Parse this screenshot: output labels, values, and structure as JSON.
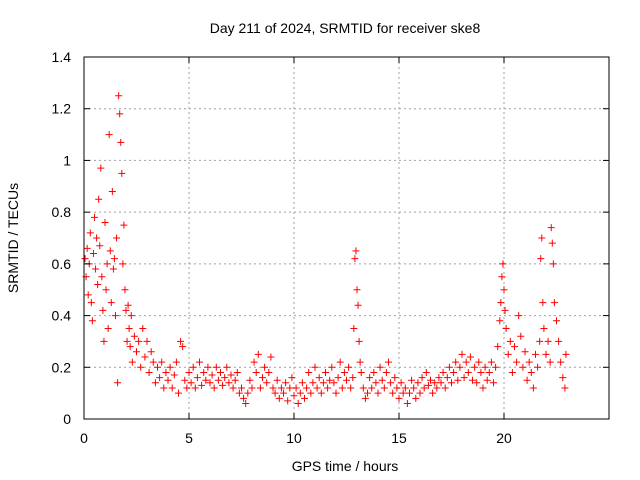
{
  "chart_data": {
    "type": "scatter",
    "title": "Day 211 of 2024, SRMTID for receiver ske8",
    "xlabel": "GPS time / hours",
    "ylabel": "SRMTID / TECUs",
    "xlim": [
      0,
      25
    ],
    "ylim": [
      0,
      1.4
    ],
    "xticks": [
      0,
      5,
      10,
      15,
      20
    ],
    "yticks": [
      0,
      0.2,
      0.4,
      0.6,
      0.8,
      1,
      1.2,
      1.4
    ],
    "grid": true,
    "marker": "+",
    "color": "#ff0000",
    "series": [
      {
        "name": "SRMTID",
        "points": [
          [
            0.05,
            0.62
          ],
          [
            0.1,
            0.55
          ],
          [
            0.15,
            0.66
          ],
          [
            0.2,
            0.48
          ],
          [
            0.25,
            0.6
          ],
          [
            0.3,
            0.72
          ],
          [
            0.35,
            0.45
          ],
          [
            0.4,
            0.38
          ],
          [
            0.45,
            0.64
          ],
          [
            0.5,
            0.78
          ],
          [
            0.55,
            0.58
          ],
          [
            0.6,
            0.7
          ],
          [
            0.65,
            0.52
          ],
          [
            0.7,
            0.85
          ],
          [
            0.75,
            0.67
          ],
          [
            0.8,
            0.97
          ],
          [
            0.85,
            0.55
          ],
          [
            0.9,
            0.42
          ],
          [
            0.95,
            0.3
          ],
          [
            1.0,
            0.76
          ],
          [
            1.05,
            0.5
          ],
          [
            1.1,
            0.6
          ],
          [
            1.15,
            0.35
          ],
          [
            1.2,
            1.1
          ],
          [
            1.25,
            0.65
          ],
          [
            1.3,
            0.45
          ],
          [
            1.35,
            0.88
          ],
          [
            1.4,
            0.58
          ],
          [
            1.45,
            0.62
          ],
          [
            1.5,
            0.4
          ],
          [
            1.55,
            0.7
          ],
          [
            1.6,
            0.14
          ],
          [
            1.65,
            1.25
          ],
          [
            1.7,
            1.18
          ],
          [
            1.75,
            1.07
          ],
          [
            1.8,
            0.95
          ],
          [
            1.85,
            0.6
          ],
          [
            1.9,
            0.75
          ],
          [
            1.95,
            0.5
          ],
          [
            2.0,
            0.42
          ],
          [
            2.05,
            0.3
          ],
          [
            2.1,
            0.44
          ],
          [
            2.15,
            0.35
          ],
          [
            2.2,
            0.28
          ],
          [
            2.25,
            0.4
          ],
          [
            2.3,
            0.22
          ],
          [
            2.4,
            0.32
          ],
          [
            2.5,
            0.26
          ],
          [
            2.6,
            0.3
          ],
          [
            2.7,
            0.2
          ],
          [
            2.8,
            0.35
          ],
          [
            2.9,
            0.24
          ],
          [
            3.0,
            0.3
          ],
          [
            3.1,
            0.18
          ],
          [
            3.2,
            0.26
          ],
          [
            3.3,
            0.22
          ],
          [
            3.4,
            0.14
          ],
          [
            3.5,
            0.2
          ],
          [
            3.6,
            0.16
          ],
          [
            3.7,
            0.22
          ],
          [
            3.8,
            0.12
          ],
          [
            3.9,
            0.18
          ],
          [
            4.0,
            0.15
          ],
          [
            4.1,
            0.2
          ],
          [
            4.2,
            0.12
          ],
          [
            4.3,
            0.17
          ],
          [
            4.4,
            0.22
          ],
          [
            4.5,
            0.1
          ],
          [
            4.6,
            0.3
          ],
          [
            4.7,
            0.28
          ],
          [
            4.8,
            0.15
          ],
          [
            4.9,
            0.12
          ],
          [
            5.0,
            0.18
          ],
          [
            5.1,
            0.14
          ],
          [
            5.2,
            0.2
          ],
          [
            5.3,
            0.12
          ],
          [
            5.4,
            0.16
          ],
          [
            5.5,
            0.22
          ],
          [
            5.6,
            0.13
          ],
          [
            5.7,
            0.18
          ],
          [
            5.8,
            0.15
          ],
          [
            5.9,
            0.2
          ],
          [
            6.0,
            0.14
          ],
          [
            6.1,
            0.17
          ],
          [
            6.2,
            0.12
          ],
          [
            6.3,
            0.2
          ],
          [
            6.4,
            0.15
          ],
          [
            6.5,
            0.18
          ],
          [
            6.6,
            0.13
          ],
          [
            6.7,
            0.16
          ],
          [
            6.8,
            0.2
          ],
          [
            6.9,
            0.14
          ],
          [
            7.0,
            0.17
          ],
          [
            7.1,
            0.12
          ],
          [
            7.2,
            0.15
          ],
          [
            7.3,
            0.18
          ],
          [
            7.4,
            0.1
          ],
          [
            7.5,
            0.12
          ],
          [
            7.6,
            0.08
          ],
          [
            7.7,
            0.06
          ],
          [
            7.8,
            0.1
          ],
          [
            7.9,
            0.15
          ],
          [
            8.0,
            0.12
          ],
          [
            8.1,
            0.22
          ],
          [
            8.2,
            0.18
          ],
          [
            8.3,
            0.25
          ],
          [
            8.4,
            0.12
          ],
          [
            8.5,
            0.16
          ],
          [
            8.6,
            0.2
          ],
          [
            8.7,
            0.14
          ],
          [
            8.8,
            0.18
          ],
          [
            8.9,
            0.24
          ],
          [
            9.0,
            0.12
          ],
          [
            9.1,
            0.1
          ],
          [
            9.2,
            0.15
          ],
          [
            9.3,
            0.08
          ],
          [
            9.4,
            0.12
          ],
          [
            9.5,
            0.1
          ],
          [
            9.6,
            0.14
          ],
          [
            9.7,
            0.07
          ],
          [
            9.8,
            0.12
          ],
          [
            9.9,
            0.16
          ],
          [
            10.0,
            0.09
          ],
          [
            10.1,
            0.12
          ],
          [
            10.2,
            0.06
          ],
          [
            10.3,
            0.1
          ],
          [
            10.4,
            0.14
          ],
          [
            10.5,
            0.08
          ],
          [
            10.6,
            0.12
          ],
          [
            10.7,
            0.18
          ],
          [
            10.8,
            0.1
          ],
          [
            10.9,
            0.14
          ],
          [
            11.0,
            0.2
          ],
          [
            11.1,
            0.12
          ],
          [
            11.2,
            0.16
          ],
          [
            11.3,
            0.1
          ],
          [
            11.4,
            0.14
          ],
          [
            11.5,
            0.18
          ],
          [
            11.6,
            0.12
          ],
          [
            11.7,
            0.15
          ],
          [
            11.8,
            0.2
          ],
          [
            11.9,
            0.14
          ],
          [
            12.0,
            0.1
          ],
          [
            12.1,
            0.16
          ],
          [
            12.2,
            0.22
          ],
          [
            12.3,
            0.12
          ],
          [
            12.4,
            0.18
          ],
          [
            12.5,
            0.15
          ],
          [
            12.6,
            0.2
          ],
          [
            12.7,
            0.12
          ],
          [
            12.8,
            0.16
          ],
          [
            12.85,
            0.35
          ],
          [
            12.9,
            0.62
          ],
          [
            12.95,
            0.65
          ],
          [
            13.0,
            0.5
          ],
          [
            13.05,
            0.44
          ],
          [
            13.1,
            0.3
          ],
          [
            13.15,
            0.22
          ],
          [
            13.2,
            0.18
          ],
          [
            13.3,
            0.12
          ],
          [
            13.4,
            0.08
          ],
          [
            13.5,
            0.1
          ],
          [
            13.6,
            0.16
          ],
          [
            13.7,
            0.12
          ],
          [
            13.8,
            0.18
          ],
          [
            13.9,
            0.14
          ],
          [
            14.0,
            0.1
          ],
          [
            14.1,
            0.2
          ],
          [
            14.2,
            0.15
          ],
          [
            14.3,
            0.12
          ],
          [
            14.4,
            0.18
          ],
          [
            14.5,
            0.22
          ],
          [
            14.6,
            0.14
          ],
          [
            14.7,
            0.1
          ],
          [
            14.8,
            0.16
          ],
          [
            14.9,
            0.12
          ],
          [
            15.0,
            0.08
          ],
          [
            15.1,
            0.14
          ],
          [
            15.2,
            0.1
          ],
          [
            15.3,
            0.12
          ],
          [
            15.4,
            0.06
          ],
          [
            15.5,
            0.1
          ],
          [
            15.6,
            0.15
          ],
          [
            15.7,
            0.12
          ],
          [
            15.8,
            0.08
          ],
          [
            15.9,
            0.14
          ],
          [
            16.0,
            0.1
          ],
          [
            16.1,
            0.16
          ],
          [
            16.2,
            0.12
          ],
          [
            16.3,
            0.18
          ],
          [
            16.4,
            0.13
          ],
          [
            16.5,
            0.15
          ],
          [
            16.6,
            0.1
          ],
          [
            16.7,
            0.14
          ],
          [
            16.8,
            0.12
          ],
          [
            16.9,
            0.16
          ],
          [
            17.0,
            0.14
          ],
          [
            17.1,
            0.18
          ],
          [
            17.2,
            0.12
          ],
          [
            17.3,
            0.16
          ],
          [
            17.4,
            0.2
          ],
          [
            17.5,
            0.14
          ],
          [
            17.6,
            0.18
          ],
          [
            17.7,
            0.22
          ],
          [
            17.8,
            0.15
          ],
          [
            17.9,
            0.2
          ],
          [
            18.0,
            0.25
          ],
          [
            18.1,
            0.16
          ],
          [
            18.2,
            0.22
          ],
          [
            18.3,
            0.18
          ],
          [
            18.4,
            0.24
          ],
          [
            18.5,
            0.15
          ],
          [
            18.6,
            0.2
          ],
          [
            18.7,
            0.14
          ],
          [
            18.8,
            0.22
          ],
          [
            18.9,
            0.18
          ],
          [
            19.0,
            0.12
          ],
          [
            19.1,
            0.2
          ],
          [
            19.2,
            0.15
          ],
          [
            19.3,
            0.18
          ],
          [
            19.4,
            0.22
          ],
          [
            19.5,
            0.14
          ],
          [
            19.6,
            0.2
          ],
          [
            19.7,
            0.28
          ],
          [
            19.8,
            0.38
          ],
          [
            19.85,
            0.45
          ],
          [
            19.9,
            0.55
          ],
          [
            19.95,
            0.6
          ],
          [
            20.0,
            0.5
          ],
          [
            20.05,
            0.42
          ],
          [
            20.1,
            0.35
          ],
          [
            20.2,
            0.25
          ],
          [
            20.3,
            0.3
          ],
          [
            20.4,
            0.18
          ],
          [
            20.5,
            0.28
          ],
          [
            20.6,
            0.22
          ],
          [
            20.7,
            0.4
          ],
          [
            20.8,
            0.32
          ],
          [
            20.9,
            0.2
          ],
          [
            21.0,
            0.26
          ],
          [
            21.1,
            0.15
          ],
          [
            21.2,
            0.22
          ],
          [
            21.3,
            0.18
          ],
          [
            21.4,
            0.12
          ],
          [
            21.5,
            0.25
          ],
          [
            21.6,
            0.2
          ],
          [
            21.7,
            0.3
          ],
          [
            21.75,
            0.62
          ],
          [
            21.8,
            0.7
          ],
          [
            21.85,
            0.45
          ],
          [
            21.9,
            0.35
          ],
          [
            22.0,
            0.25
          ],
          [
            22.1,
            0.3
          ],
          [
            22.2,
            0.22
          ],
          [
            22.25,
            0.74
          ],
          [
            22.3,
            0.68
          ],
          [
            22.35,
            0.6
          ],
          [
            22.4,
            0.45
          ],
          [
            22.5,
            0.38
          ],
          [
            22.6,
            0.3
          ],
          [
            22.7,
            0.22
          ],
          [
            22.8,
            0.16
          ],
          [
            22.9,
            0.12
          ],
          [
            22.95,
            0.25
          ]
        ]
      }
    ]
  }
}
